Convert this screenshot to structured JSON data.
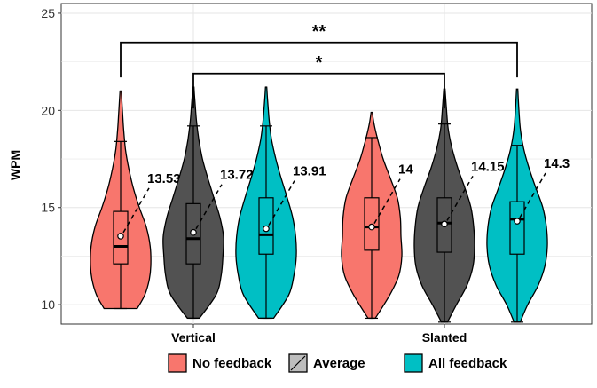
{
  "chart_data": {
    "type": "violin",
    "ylabel": "WPM",
    "xlabel": "",
    "ylim": [
      9,
      25.5
    ],
    "yticks": [
      10,
      15,
      20,
      25
    ],
    "categories": [
      "Vertical",
      "Slanted"
    ],
    "grid": true,
    "legend_position": "bottom",
    "series": [
      {
        "name": "No feedback",
        "color": "#F8766D",
        "pattern": "none",
        "data": [
          {
            "category": "Vertical",
            "mean": 13.53,
            "mean_label": "13.53",
            "min": 9.8,
            "max": 21.0,
            "q1": 12.1,
            "median": 13.0,
            "q3": 14.8,
            "whisker_low": 9.8,
            "whisker_high": 18.4,
            "density": [
              [
                9.8,
                0.55
              ],
              [
                10.5,
                0.8
              ],
              [
                11.3,
                0.95
              ],
              [
                12.0,
                1.0
              ],
              [
                13.0,
                0.98
              ],
              [
                14.0,
                0.85
              ],
              [
                15.0,
                0.62
              ],
              [
                16.0,
                0.42
              ],
              [
                17.0,
                0.27
              ],
              [
                18.0,
                0.16
              ],
              [
                19.0,
                0.1
              ],
              [
                20.0,
                0.06
              ],
              [
                21.0,
                0.02
              ]
            ]
          },
          {
            "category": "Slanted",
            "mean": 14.0,
            "mean_label": "14",
            "min": 9.3,
            "max": 19.9,
            "q1": 12.8,
            "median": 14.0,
            "q3": 15.5,
            "whisker_low": 9.3,
            "whisker_high": 18.6,
            "density": [
              [
                9.3,
                0.12
              ],
              [
                10.5,
                0.6
              ],
              [
                11.5,
                0.9
              ],
              [
                12.5,
                1.0
              ],
              [
                13.5,
                0.97
              ],
              [
                14.5,
                0.95
              ],
              [
                15.5,
                0.85
              ],
              [
                16.5,
                0.62
              ],
              [
                17.5,
                0.38
              ],
              [
                18.5,
                0.2
              ],
              [
                19.3,
                0.08
              ],
              [
                19.9,
                0.02
              ]
            ]
          }
        ]
      },
      {
        "name": "Average",
        "color": "#525252",
        "pattern": "none",
        "data": [
          {
            "category": "Vertical",
            "mean": 13.72,
            "mean_label": "13.72",
            "min": 9.3,
            "max": 21.2,
            "q1": 12.1,
            "median": 13.4,
            "q3": 15.2,
            "whisker_low": 9.3,
            "whisker_high": 19.2,
            "density": [
              [
                9.3,
                0.2
              ],
              [
                10.5,
                0.75
              ],
              [
                11.5,
                0.92
              ],
              [
                12.5,
                0.98
              ],
              [
                13.5,
                1.0
              ],
              [
                14.5,
                0.88
              ],
              [
                15.5,
                0.68
              ],
              [
                16.5,
                0.48
              ],
              [
                17.5,
                0.3
              ],
              [
                18.5,
                0.18
              ],
              [
                19.5,
                0.1
              ],
              [
                20.5,
                0.05
              ],
              [
                21.2,
                0.02
              ]
            ]
          },
          {
            "category": "Slanted",
            "mean": 14.15,
            "mean_label": "14.15",
            "min": 9.1,
            "max": 21.1,
            "q1": 12.7,
            "median": 14.2,
            "q3": 15.5,
            "whisker_low": 9.1,
            "whisker_high": 19.3,
            "density": [
              [
                9.1,
                0.1
              ],
              [
                10.0,
                0.4
              ],
              [
                11.0,
                0.75
              ],
              [
                12.0,
                0.95
              ],
              [
                13.0,
                1.0
              ],
              [
                14.0,
                0.97
              ],
              [
                15.0,
                0.88
              ],
              [
                16.0,
                0.68
              ],
              [
                17.0,
                0.45
              ],
              [
                18.0,
                0.26
              ],
              [
                19.0,
                0.13
              ],
              [
                20.0,
                0.07
              ],
              [
                21.1,
                0.02
              ]
            ]
          }
        ]
      },
      {
        "name": "All feedback",
        "color": "#00BFC4",
        "pattern": "none",
        "data": [
          {
            "category": "Vertical",
            "mean": 13.91,
            "mean_label": "13.91",
            "min": 9.3,
            "max": 21.2,
            "q1": 12.6,
            "median": 13.6,
            "q3": 15.5,
            "whisker_low": 9.3,
            "whisker_high": 19.2,
            "density": [
              [
                9.3,
                0.25
              ],
              [
                10.5,
                0.75
              ],
              [
                11.5,
                0.92
              ],
              [
                12.5,
                1.0
              ],
              [
                13.5,
                0.98
              ],
              [
                14.5,
                0.88
              ],
              [
                15.5,
                0.7
              ],
              [
                16.5,
                0.5
              ],
              [
                17.5,
                0.32
              ],
              [
                18.5,
                0.18
              ],
              [
                19.5,
                0.1
              ],
              [
                20.5,
                0.05
              ],
              [
                21.2,
                0.02
              ]
            ]
          },
          {
            "category": "Slanted",
            "mean": 14.3,
            "mean_label": "14.3",
            "min": 9.1,
            "max": 21.1,
            "q1": 12.6,
            "median": 14.4,
            "q3": 15.3,
            "whisker_low": 9.1,
            "whisker_high": 18.2,
            "density": [
              [
                9.1,
                0.1
              ],
              [
                10.0,
                0.35
              ],
              [
                11.0,
                0.7
              ],
              [
                12.0,
                0.92
              ],
              [
                13.0,
                1.0
              ],
              [
                14.0,
                0.97
              ],
              [
                15.0,
                0.85
              ],
              [
                16.0,
                0.62
              ],
              [
                17.0,
                0.4
              ],
              [
                18.0,
                0.22
              ],
              [
                19.0,
                0.11
              ],
              [
                20.0,
                0.06
              ],
              [
                21.1,
                0.02
              ]
            ]
          }
        ]
      }
    ],
    "significance": [
      {
        "label": "**",
        "from": "Vertical / No feedback",
        "to": "Slanted / All feedback",
        "y": 23.5
      },
      {
        "label": "*",
        "from": "Vertical / Average",
        "to": "Slanted / Average",
        "y": 21.9
      }
    ]
  }
}
